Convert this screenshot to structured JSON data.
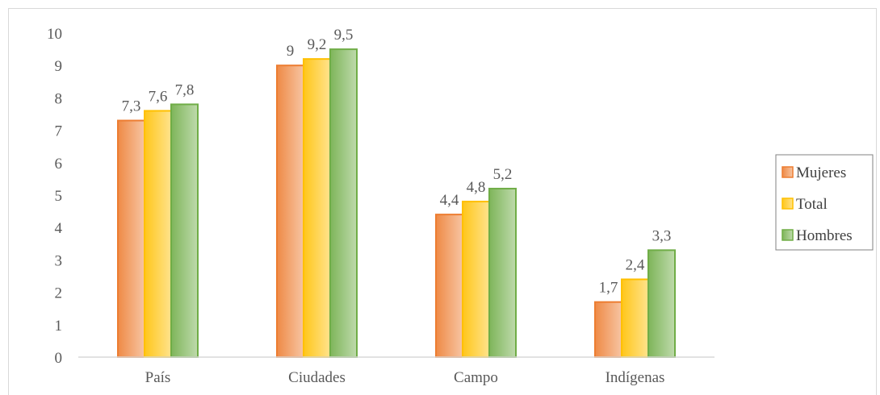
{
  "chart_data": {
    "type": "bar",
    "categories": [
      "País",
      "Ciudades",
      "Campo",
      "Indígenas"
    ],
    "series": [
      {
        "name": "Mujeres",
        "values": [
          7.3,
          9,
          4.4,
          1.7
        ],
        "labels": [
          "7,3",
          "9",
          "4,4",
          "1,7"
        ],
        "color": "#ed7d31"
      },
      {
        "name": "Total",
        "values": [
          7.6,
          9.2,
          4.8,
          2.4
        ],
        "labels": [
          "7,6",
          "9,2",
          "4,8",
          "2,4"
        ],
        "color": "#ffc000"
      },
      {
        "name": "Hombres",
        "values": [
          7.8,
          9.5,
          5.2,
          3.3
        ],
        "labels": [
          "7,8",
          "9,5",
          "5,2",
          "3,3"
        ],
        "color": "#70ad47"
      }
    ],
    "yticks": [
      "0",
      "1",
      "2",
      "3",
      "4",
      "5",
      "6",
      "7",
      "8",
      "9",
      "10"
    ],
    "ylim": [
      0,
      10
    ],
    "title": "",
    "xlabel": "",
    "ylabel": "",
    "grid": false,
    "legend_position": "right"
  }
}
